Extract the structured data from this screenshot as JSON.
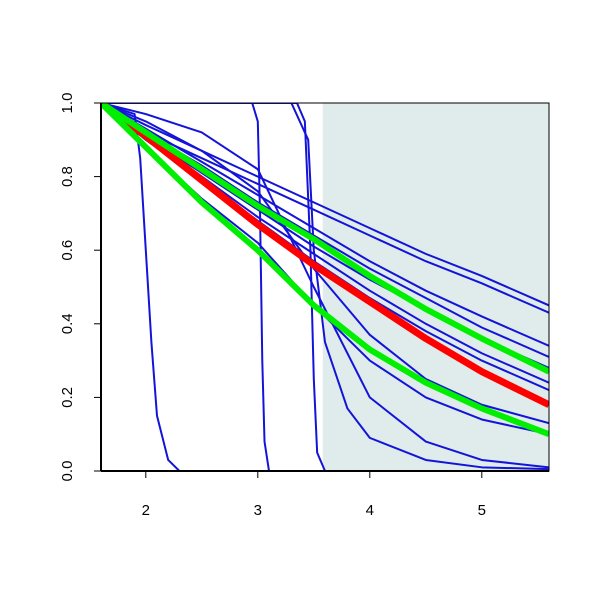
{
  "chart_data": {
    "type": "line",
    "xlim": [
      1.6,
      5.6
    ],
    "xticks": [
      2,
      3,
      4,
      5
    ],
    "ylim": [
      0,
      1
    ],
    "yticks": [
      {
        "value": 0,
        "label": "0.0"
      },
      0.2,
      0.4,
      0.6,
      0.8,
      {
        "value": 1,
        "label": "1.0"
      }
    ],
    "shaded_region": {
      "xlim": [
        3.58,
        5.6
      ],
      "color": "#dfeceb"
    },
    "series": [
      {
        "color": "#1414d8",
        "line_width": 2,
        "x": [
          1.6,
          1.9,
          1.95,
          2.0,
          2.05,
          2.1,
          2.2,
          2.3,
          5.6
        ],
        "values": [
          1,
          0.97,
          0.85,
          0.6,
          0.35,
          0.15,
          0.03,
          0,
          0
        ]
      },
      {
        "color": "#1414d8",
        "line_width": 2,
        "x": [
          1.6,
          2.95,
          3.0,
          3.02,
          3.04,
          3.06,
          3.1,
          5.6
        ],
        "values": [
          1,
          1,
          0.95,
          0.7,
          0.3,
          0.08,
          0,
          0
        ]
      },
      {
        "color": "#1414d8",
        "line_width": 2,
        "x": [
          1.6,
          3.35,
          3.42,
          3.47,
          3.5,
          3.53,
          3.6,
          5.6
        ],
        "values": [
          1,
          1,
          0.95,
          0.6,
          0.25,
          0.05,
          0,
          0
        ]
      },
      {
        "color": "#1414d8",
        "line_width": 2,
        "x": [
          1.6,
          3.3,
          3.45,
          3.5,
          3.6,
          3.8,
          4.0,
          4.5,
          5.0,
          5.6
        ],
        "values": [
          1,
          1,
          0.9,
          0.6,
          0.35,
          0.17,
          0.09,
          0.03,
          0.01,
          0.005
        ]
      },
      {
        "color": "#1414d8",
        "line_width": 2,
        "x": [
          1.6,
          2.0,
          2.5,
          3.0,
          3.5,
          4.0,
          4.5,
          5.0,
          5.6
        ],
        "values": [
          1,
          0.94,
          0.87,
          0.8,
          0.73,
          0.66,
          0.59,
          0.53,
          0.45
        ]
      },
      {
        "color": "#1414d8",
        "line_width": 2,
        "x": [
          1.6,
          2.0,
          2.5,
          3.0,
          3.5,
          4.0,
          4.5,
          5.0,
          5.6
        ],
        "values": [
          1,
          0.92,
          0.85,
          0.78,
          0.71,
          0.64,
          0.57,
          0.51,
          0.43
        ]
      },
      {
        "color": "#1414d8",
        "line_width": 2,
        "x": [
          1.6,
          2.0,
          2.5,
          3.0,
          3.5,
          4.0,
          4.5,
          5.0,
          5.6
        ],
        "values": [
          1,
          0.93,
          0.84,
          0.75,
          0.66,
          0.57,
          0.49,
          0.42,
          0.34
        ]
      },
      {
        "color": "#1414d8",
        "line_width": 2,
        "x": [
          1.6,
          2.0,
          2.5,
          3.0,
          3.5,
          4.0,
          4.5,
          5.0,
          5.6
        ],
        "values": [
          1,
          0.92,
          0.83,
          0.73,
          0.64,
          0.55,
          0.47,
          0.39,
          0.31
        ]
      },
      {
        "color": "#1414d8",
        "line_width": 2,
        "x": [
          1.6,
          2.0,
          2.5,
          3.0,
          3.5,
          4.0,
          4.5,
          5.0,
          5.6
        ],
        "values": [
          1,
          0.91,
          0.81,
          0.71,
          0.61,
          0.52,
          0.44,
          0.36,
          0.28
        ]
      },
      {
        "color": "#1414d8",
        "line_width": 2,
        "x": [
          1.6,
          2.0,
          2.5,
          3.0,
          3.5,
          4.0,
          4.5,
          5.0,
          5.6
        ],
        "values": [
          1,
          0.91,
          0.8,
          0.69,
          0.59,
          0.49,
          0.4,
          0.32,
          0.24
        ]
      },
      {
        "color": "#1414d8",
        "line_width": 2,
        "x": [
          1.6,
          2.0,
          2.5,
          3.0,
          3.5,
          4.0,
          4.5,
          5.0,
          5.6
        ],
        "values": [
          1,
          0.9,
          0.79,
          0.68,
          0.57,
          0.47,
          0.38,
          0.3,
          0.22
        ]
      },
      {
        "color": "#1414d8",
        "line_width": 2,
        "x": [
          1.6,
          2.0,
          2.5,
          3.0,
          3.5,
          4.0,
          4.5,
          5.0,
          5.6
        ],
        "values": [
          1,
          0.95,
          0.87,
          0.76,
          0.55,
          0.37,
          0.25,
          0.18,
          0.13
        ]
      },
      {
        "color": "#1414d8",
        "line_width": 2,
        "x": [
          1.6,
          2.0,
          2.5,
          3.0,
          3.5,
          4.0,
          4.5,
          5.0,
          5.6
        ],
        "values": [
          1,
          0.88,
          0.74,
          0.62,
          0.45,
          0.3,
          0.2,
          0.14,
          0.1
        ]
      },
      {
        "color": "#1414d8",
        "line_width": 2,
        "x": [
          1.6,
          2.0,
          2.5,
          3.0,
          3.5,
          4.0,
          4.5,
          5.0,
          5.6
        ],
        "values": [
          1,
          0.97,
          0.92,
          0.82,
          0.5,
          0.2,
          0.08,
          0.03,
          0.01
        ]
      },
      {
        "color": "#ff0000",
        "line_width": 7,
        "x": [
          1.6,
          2.0,
          2.5,
          3.0,
          3.5,
          4.0,
          4.5,
          5.0,
          5.6
        ],
        "values": [
          1,
          0.91,
          0.79,
          0.67,
          0.56,
          0.46,
          0.36,
          0.27,
          0.18
        ]
      },
      {
        "color": "#00ee00",
        "line_width": 6,
        "x": [
          1.6,
          2.0,
          2.5,
          3.0,
          3.5,
          4.0,
          4.5,
          5.0,
          5.6
        ],
        "values": [
          1,
          0.92,
          0.82,
          0.72,
          0.63,
          0.53,
          0.44,
          0.36,
          0.27
        ]
      },
      {
        "color": "#00ee00",
        "line_width": 6,
        "x": [
          1.6,
          2.0,
          2.5,
          3.0,
          3.5,
          4.0,
          4.5,
          5.0,
          5.6
        ],
        "values": [
          1,
          0.88,
          0.73,
          0.6,
          0.45,
          0.33,
          0.24,
          0.17,
          0.1
        ]
      }
    ]
  }
}
